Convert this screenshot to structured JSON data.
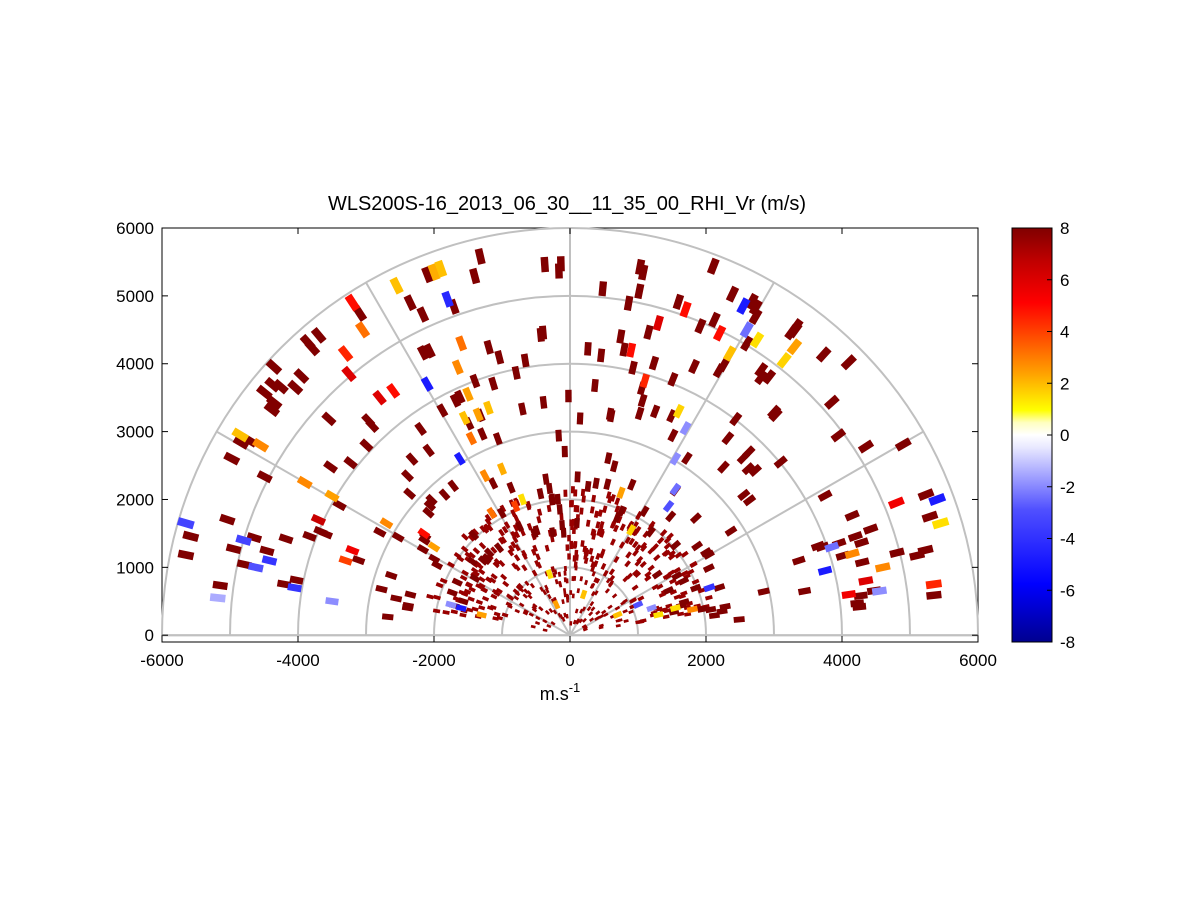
{
  "chart_data": {
    "type": "polar-rhi-scatter",
    "title": "WLS200S-16_2013_06_30__11_35_00_RHI_Vr (m/s)",
    "xlabel": "m.s",
    "xlabel_superscript": "-1",
    "ylabel": "",
    "xlim": [
      -6000,
      6000
    ],
    "ylim": [
      -100,
      6000
    ],
    "x_ticks": [
      -6000,
      -4000,
      -2000,
      0,
      2000,
      4000,
      6000
    ],
    "y_ticks": [
      0,
      1000,
      2000,
      3000,
      4000,
      5000,
      6000
    ],
    "x_tick_labels": [
      "-6000",
      "-4000",
      "-2000",
      "0",
      "2000",
      "4000",
      "6000"
    ],
    "y_tick_labels": [
      "0",
      "1000",
      "2000",
      "3000",
      "4000",
      "5000",
      "6000"
    ],
    "grid": {
      "range_rings": [
        1000,
        2000,
        3000,
        4000,
        5000,
        6000
      ],
      "spokes_deg": [
        0,
        30,
        60,
        90,
        120,
        150,
        180
      ]
    },
    "colorbar": {
      "range": [
        -8,
        8
      ],
      "ticks": [
        8,
        6,
        4,
        2,
        0,
        -2,
        -4,
        -6,
        -8
      ],
      "tick_labels": [
        "8",
        "6",
        "4",
        "2",
        "0",
        "-2",
        "-4",
        "-6",
        "-8"
      ],
      "colormap": [
        "#000080",
        "#0000ff",
        "#8080ff",
        "#ffffff",
        "#ffff00",
        "#ff8c00",
        "#ff0000",
        "#800000"
      ]
    },
    "points_vr": [
      {
        "x": -5650,
        "y": 1650,
        "vr": -3.5
      },
      {
        "x": -5180,
        "y": 550,
        "vr": -1.5
      },
      {
        "x": -4800,
        "y": 1400,
        "vr": -3.5
      },
      {
        "x": -4620,
        "y": 1000,
        "vr": -3
      },
      {
        "x": -4420,
        "y": 1100,
        "vr": -4
      },
      {
        "x": -4050,
        "y": 700,
        "vr": -4
      },
      {
        "x": -3500,
        "y": 500,
        "vr": -2
      },
      {
        "x": -1620,
        "y": 2600,
        "vr": -5
      },
      {
        "x": -2100,
        "y": 3700,
        "vr": -5
      },
      {
        "x": -1800,
        "y": 4950,
        "vr": -4.5
      },
      {
        "x": 2550,
        "y": 4850,
        "vr": -5
      },
      {
        "x": 2600,
        "y": 4500,
        "vr": -2.5
      },
      {
        "x": 1700,
        "y": 3050,
        "vr": -2
      },
      {
        "x": 1550,
        "y": 2600,
        "vr": -2
      },
      {
        "x": 1550,
        "y": 2150,
        "vr": -2.5
      },
      {
        "x": 1450,
        "y": 1900,
        "vr": -3
      },
      {
        "x": 3850,
        "y": 1300,
        "vr": -2.5
      },
      {
        "x": 3750,
        "y": 950,
        "vr": -5
      },
      {
        "x": 4550,
        "y": 650,
        "vr": -2
      },
      {
        "x": 5400,
        "y": 2000,
        "vr": -5
      },
      {
        "x": 2050,
        "y": 700,
        "vr": -4
      },
      {
        "x": 1000,
        "y": 450,
        "vr": -3
      },
      {
        "x": 1200,
        "y": 400,
        "vr": -2
      },
      {
        "x": -1600,
        "y": 400,
        "vr": -5
      },
      {
        "x": -1750,
        "y": 450,
        "vr": -2
      },
      {
        "x": -4850,
        "y": 2950,
        "vr": 1.5
      },
      {
        "x": -4550,
        "y": 2800,
        "vr": 2.5
      },
      {
        "x": -3500,
        "y": 2050,
        "vr": 2
      },
      {
        "x": -3900,
        "y": 2250,
        "vr": 2.5
      },
      {
        "x": -3300,
        "y": 1100,
        "vr": 4
      },
      {
        "x": -2700,
        "y": 1650,
        "vr": 2.5
      },
      {
        "x": -2000,
        "y": 1300,
        "vr": 2
      },
      {
        "x": -2150,
        "y": 1500,
        "vr": 5
      },
      {
        "x": -2550,
        "y": 5150,
        "vr": 1.5
      },
      {
        "x": -2000,
        "y": 5350,
        "vr": 1.8
      },
      {
        "x": -1900,
        "y": 5400,
        "vr": 1.5
      },
      {
        "x": -3050,
        "y": 4500,
        "vr": 3
      },
      {
        "x": -3200,
        "y": 4900,
        "vr": 5
      },
      {
        "x": -3300,
        "y": 4150,
        "vr": 4.5
      },
      {
        "x": -3250,
        "y": 3850,
        "vr": 6
      },
      {
        "x": -1600,
        "y": 4300,
        "vr": 3
      },
      {
        "x": -1650,
        "y": 3950,
        "vr": 2.5
      },
      {
        "x": -1500,
        "y": 3550,
        "vr": 2
      },
      {
        "x": -1550,
        "y": 3200,
        "vr": 1.5
      },
      {
        "x": -1450,
        "y": 2900,
        "vr": 3
      },
      {
        "x": -1350,
        "y": 3250,
        "vr": 2
      },
      {
        "x": -1200,
        "y": 3350,
        "vr": 1.5
      },
      {
        "x": -1000,
        "y": 2450,
        "vr": 1.8
      },
      {
        "x": -1250,
        "y": 2350,
        "vr": 2.5
      },
      {
        "x": -1150,
        "y": 1800,
        "vr": 3
      },
      {
        "x": -800,
        "y": 1900,
        "vr": 4
      },
      {
        "x": -700,
        "y": 2000,
        "vr": 1
      },
      {
        "x": 750,
        "y": 2100,
        "vr": 2
      },
      {
        "x": 900,
        "y": 1550,
        "vr": 1.2
      },
      {
        "x": 1600,
        "y": 3300,
        "vr": 1.2
      },
      {
        "x": 1700,
        "y": 4800,
        "vr": 5
      },
      {
        "x": 2750,
        "y": 4350,
        "vr": 1
      },
      {
        "x": 3150,
        "y": 4050,
        "vr": 1.2
      },
      {
        "x": 3300,
        "y": 4250,
        "vr": 2
      },
      {
        "x": 4150,
        "y": 1200,
        "vr": 2.5
      },
      {
        "x": 4600,
        "y": 1000,
        "vr": 2.5
      },
      {
        "x": 5450,
        "y": 1650,
        "vr": 1
      },
      {
        "x": 5350,
        "y": 750,
        "vr": 4.5
      },
      {
        "x": 4800,
        "y": 1950,
        "vr": 5.5
      },
      {
        "x": 4350,
        "y": 800,
        "vr": 6
      },
      {
        "x": 4100,
        "y": 600,
        "vr": 5.5
      },
      {
        "x": 2200,
        "y": 4450,
        "vr": 5
      },
      {
        "x": 2350,
        "y": 4150,
        "vr": 1.5
      },
      {
        "x": 1100,
        "y": 3750,
        "vr": 4.5
      },
      {
        "x": 900,
        "y": 4200,
        "vr": 5
      },
      {
        "x": 1300,
        "y": 4600,
        "vr": 6
      },
      {
        "x": -2600,
        "y": 3600,
        "vr": 5
      },
      {
        "x": -2800,
        "y": 3500,
        "vr": 6
      },
      {
        "x": -3200,
        "y": 1250,
        "vr": 5.5
      },
      {
        "x": -3700,
        "y": 1700,
        "vr": 6.5
      },
      {
        "x": 200,
        "y": 600,
        "vr": 1.5
      },
      {
        "x": -300,
        "y": 900,
        "vr": 1
      },
      {
        "x": -200,
        "y": 450,
        "vr": 2
      },
      {
        "x": 700,
        "y": 300,
        "vr": 1.5
      },
      {
        "x": 1300,
        "y": 300,
        "vr": 1
      },
      {
        "x": -1300,
        "y": 300,
        "vr": 2
      },
      {
        "x": 1550,
        "y": 400,
        "vr": 1
      },
      {
        "x": 1800,
        "y": 380,
        "vr": 2.5
      }
    ]
  }
}
